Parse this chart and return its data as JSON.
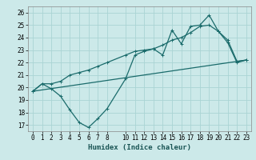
{
  "title": "",
  "xlabel": "Humidex (Indice chaleur)",
  "ylabel": "",
  "bg_color": "#cce9e9",
  "grid_color": "#aad4d4",
  "line_color": "#1a6b6b",
  "xlim": [
    -0.5,
    23.5
  ],
  "ylim": [
    16.5,
    26.5
  ],
  "yticks": [
    17,
    18,
    19,
    20,
    21,
    22,
    23,
    24,
    25,
    26
  ],
  "xticks": [
    0,
    1,
    2,
    3,
    4,
    5,
    6,
    7,
    8,
    10,
    11,
    12,
    13,
    14,
    15,
    16,
    17,
    18,
    19,
    20,
    21,
    22,
    23
  ],
  "line1_x": [
    0,
    1,
    2,
    3,
    4,
    5,
    6,
    7,
    8,
    10,
    11,
    12,
    13,
    14,
    15,
    16,
    17,
    18,
    19,
    20,
    21,
    22,
    23
  ],
  "line1_y": [
    19.7,
    20.3,
    19.9,
    19.3,
    18.2,
    17.2,
    16.8,
    17.5,
    18.3,
    20.7,
    22.6,
    22.9,
    23.1,
    22.6,
    24.6,
    23.5,
    24.9,
    25.0,
    25.8,
    24.5,
    23.8,
    22.1,
    22.2
  ],
  "line2_x": [
    0,
    1,
    2,
    3,
    4,
    5,
    6,
    7,
    8,
    10,
    11,
    12,
    13,
    14,
    15,
    16,
    17,
    18,
    19,
    20,
    21,
    22,
    23
  ],
  "line2_y": [
    19.7,
    20.3,
    20.3,
    20.5,
    21.0,
    21.2,
    21.4,
    21.7,
    22.0,
    22.6,
    22.9,
    23.0,
    23.1,
    23.4,
    23.8,
    24.0,
    24.4,
    24.9,
    25.0,
    24.5,
    23.6,
    22.0,
    22.2
  ],
  "line3_x": [
    0,
    23
  ],
  "line3_y": [
    19.7,
    22.2
  ],
  "marker_size": 2.5,
  "linewidth": 0.9,
  "tick_fontsize": 5.5,
  "xlabel_fontsize": 6.5
}
